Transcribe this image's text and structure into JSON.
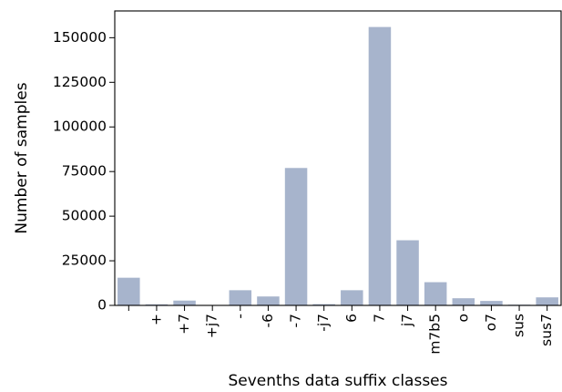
{
  "chart_data": {
    "type": "bar",
    "title": "",
    "xlabel": "Sevenths data suffix classes",
    "ylabel": "Number of  samples",
    "categories": [
      "",
      "+",
      "+7",
      "+j7",
      "-",
      "-6",
      "-7",
      "-j7",
      "6",
      "7",
      "j7",
      "m7b5",
      "o",
      "o7",
      "sus",
      "sus7"
    ],
    "values": [
      15500,
      600,
      2700,
      100,
      8500,
      5000,
      77000,
      700,
      8500,
      156000,
      36500,
      13000,
      4000,
      2500,
      400,
      4500
    ],
    "ylim": [
      0,
      165000
    ],
    "yticks": [
      0,
      25000,
      50000,
      75000,
      100000,
      125000,
      150000
    ],
    "ytick_labels": [
      "0",
      "25000",
      "50000",
      "75000",
      "100000",
      "125000",
      "150000"
    ],
    "grid": false,
    "legend": "none",
    "bar_color": "#a7b4cc"
  }
}
